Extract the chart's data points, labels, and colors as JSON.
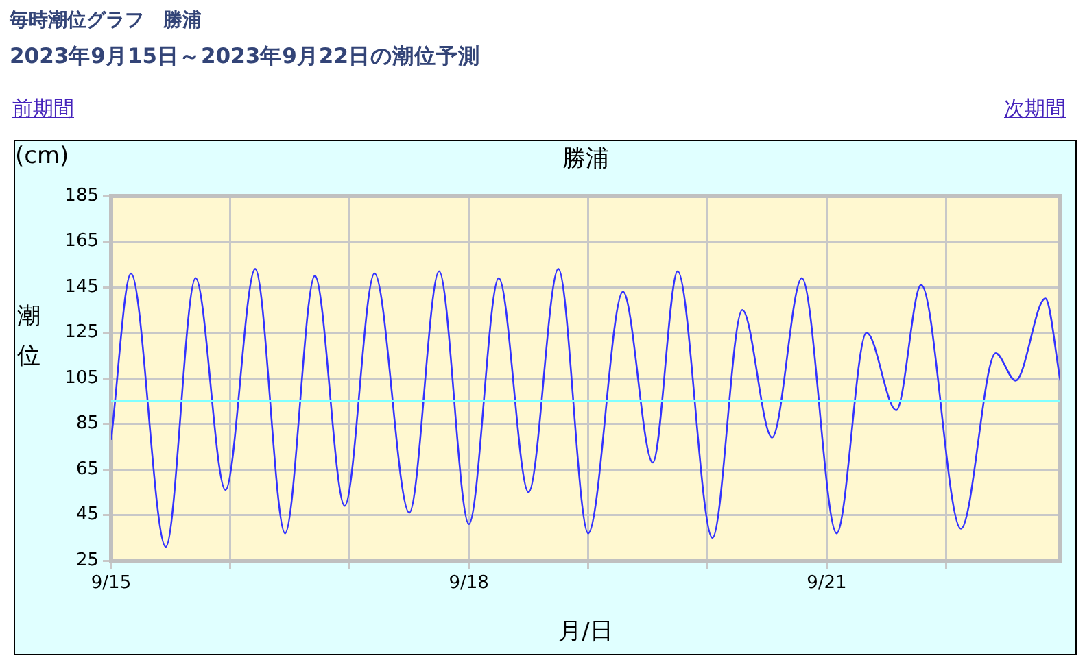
{
  "chart_data": {
    "type": "line",
    "title": "毎時潮位グラフ　勝浦",
    "subtitle": "2023年9月15日～2023年9月22日の潮位予測",
    "xlabel": "月/日",
    "ylabel": "潮位",
    "annotations": [
      "(cm)",
      "勝浦",
      "前期間",
      "次期間"
    ],
    "x": [
      "2023-09-15T00:00",
      "2023-09-15T04:00",
      "2023-09-15T11:00",
      "2023-09-15T17:00",
      "2023-09-15T23:00",
      "2023-09-16T05:00",
      "2023-09-16T11:00",
      "2023-09-16T17:00",
      "2023-09-16T23:00",
      "2023-09-17T05:00",
      "2023-09-17T12:00",
      "2023-09-17T18:00",
      "2023-09-18T00:00",
      "2023-09-18T06:00",
      "2023-09-18T12:00",
      "2023-09-18T18:00",
      "2023-09-19T00:00",
      "2023-09-19T07:00",
      "2023-09-19T13:00",
      "2023-09-19T18:00",
      "2023-09-20T01:00",
      "2023-09-20T07:00",
      "2023-09-20T13:00",
      "2023-09-20T19:00",
      "2023-09-21T02:00",
      "2023-09-21T08:00",
      "2023-09-21T14:00",
      "2023-09-21T19:00",
      "2023-09-22T03:00",
      "2023-09-22T10:00",
      "2023-09-22T14:00",
      "2023-09-22T20:00",
      "2023-09-22T23:00"
    ],
    "series": [
      {
        "color": "#3333ff",
        "values": [
          78,
          151,
          31,
          149,
          56,
          153,
          37,
          150,
          49,
          151,
          46,
          152,
          41,
          149,
          55,
          153,
          37,
          143,
          68,
          152,
          35,
          135,
          79,
          149,
          37,
          125,
          91,
          146,
          39,
          116,
          104,
          140,
          104
        ]
      }
    ],
    "xlim": [
      "2023-09-15T00:00",
      "2023-09-22T23:00"
    ],
    "xticks": [
      {
        "value": "2023-09-15",
        "label": "9/15"
      },
      {
        "value": "2023-09-16",
        "label": null
      },
      {
        "value": "2023-09-17",
        "label": null
      },
      {
        "value": "2023-09-18",
        "label": "9/18"
      },
      {
        "value": "2023-09-19",
        "label": null
      },
      {
        "value": "2023-09-20",
        "label": null
      },
      {
        "value": "2023-09-21",
        "label": "9/21"
      },
      {
        "value": "2023-09-22",
        "label": null
      }
    ],
    "ylim": [
      25,
      185
    ],
    "yticks": [
      25,
      45,
      65,
      85,
      105,
      125,
      145,
      165,
      185
    ],
    "ref_lines": [
      {
        "axis": "y",
        "value": 95,
        "color": "#80ffff"
      }
    ],
    "grid": true,
    "legend": false,
    "marker": "none",
    "line_style": "solid"
  }
}
